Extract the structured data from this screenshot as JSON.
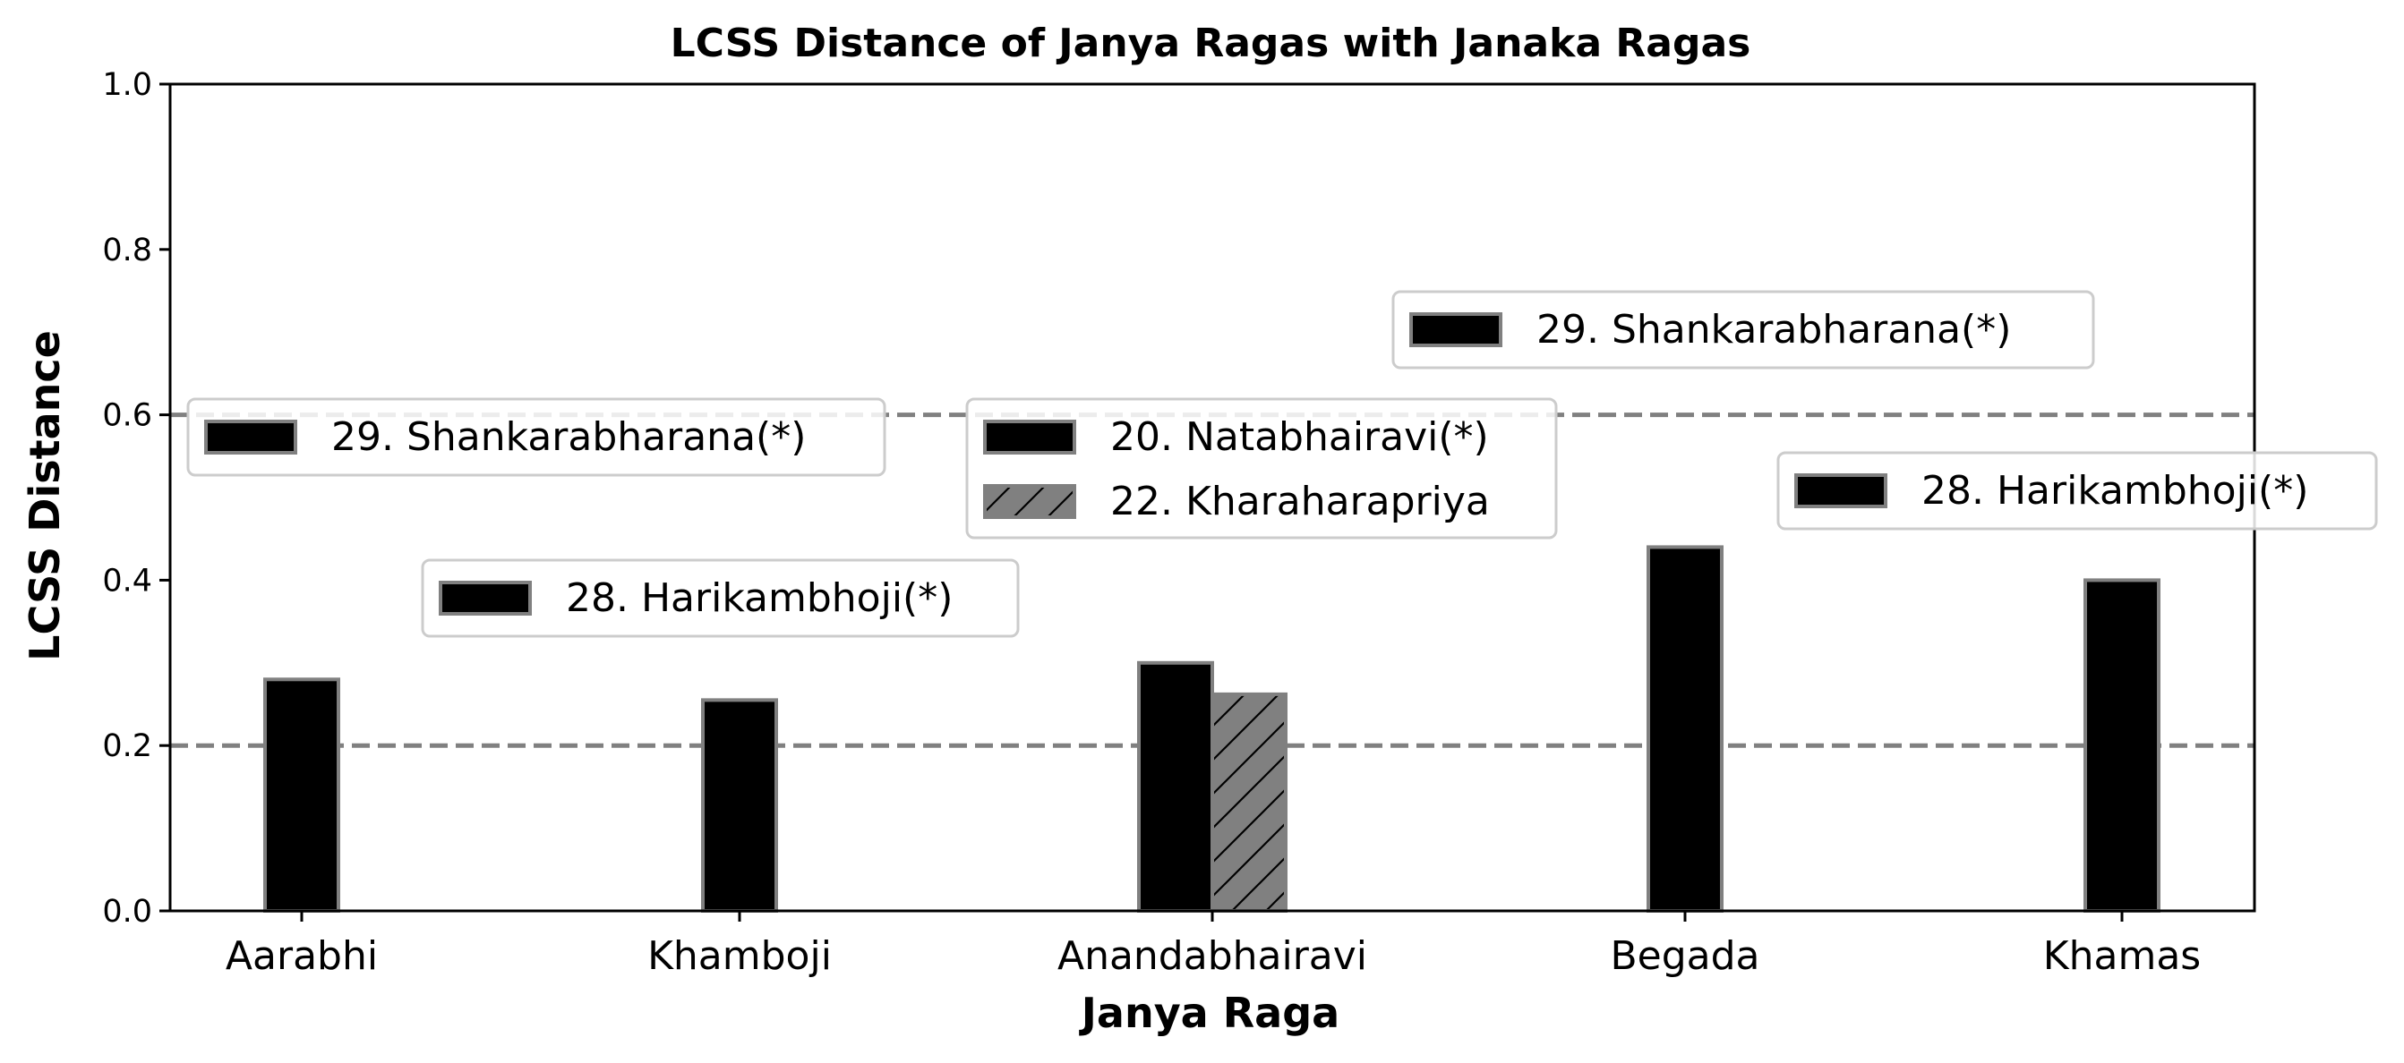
{
  "chart_data": {
    "type": "bar",
    "title": "LCSS Distance of Janya Ragas with Janaka Ragas",
    "xlabel": "Janya Raga",
    "ylabel": "LCSS Distance",
    "ylim": [
      0,
      1.0
    ],
    "yticks": [
      "0.0",
      "0.2",
      "0.4",
      "0.6",
      "0.8",
      "1.0"
    ],
    "grid": false,
    "reference_lines": [
      0.2,
      0.6
    ],
    "categories": [
      "Aarabhi",
      "Khamboji",
      "Anandabhairavi",
      "Begada",
      "Khamas"
    ],
    "groups": [
      {
        "category": "Aarabhi",
        "bars": [
          {
            "label": "29. Shankarabharana(*)",
            "value": 0.28,
            "style": "solid"
          }
        ]
      },
      {
        "category": "Khamboji",
        "bars": [
          {
            "label": "28. Harikambhoji(*)",
            "value": 0.255,
            "style": "solid"
          }
        ]
      },
      {
        "category": "Anandabhairavi",
        "bars": [
          {
            "label": "20. Natabhairavi(*)",
            "value": 0.3,
            "style": "solid"
          },
          {
            "label": "22. Kharaharapriya",
            "value": 0.262,
            "style": "hatched"
          }
        ]
      },
      {
        "category": "Begada",
        "bars": [
          {
            "label": "29. Shankarabharana(*)",
            "value": 0.44,
            "style": "solid"
          }
        ]
      },
      {
        "category": "Khamas",
        "bars": [
          {
            "label": "28. Harikambhoji(*)",
            "value": 0.4,
            "style": "solid"
          }
        ]
      }
    ]
  },
  "colors": {
    "bar_solid": "#000000",
    "bar_hatched": "#808080",
    "bar_edge": "#808080",
    "reference_line": "#808080",
    "legend_border": "#cccccc"
  }
}
